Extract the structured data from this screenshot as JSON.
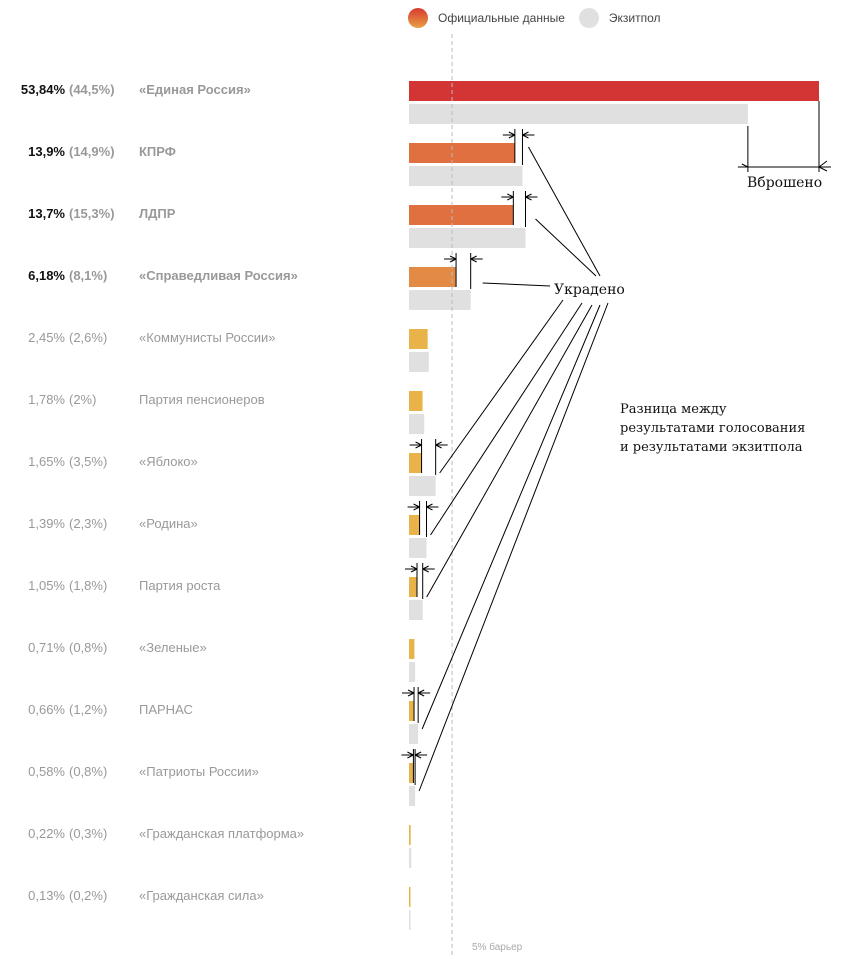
{
  "legend": {
    "official_label": "Официальные данные",
    "exitpoll_label": "Экзитпол"
  },
  "colors": {
    "official_major_top": "#d33434",
    "official_orange": "#e07040",
    "official_light_orange": "#e38a44",
    "official_minor": "#e8b44a",
    "exitpoll": "#e0e0e0",
    "barrier_line": "#bbbbbb",
    "annotation": "#000000"
  },
  "barrier_label": "5% барьер",
  "annotations": {
    "stuffed": "Вброшено",
    "stolen": "Украдено",
    "difference_line1": "Разница между",
    "difference_line2": "результатами голосования",
    "difference_line3": "и результатами экзитпола"
  },
  "rows": [
    {
      "official_text": "53,84%",
      "exitpoll_text": "(44,5%)",
      "name": "«Единая Россия»",
      "major": true
    },
    {
      "official_text": "13,9%",
      "exitpoll_text": "(14,9%)",
      "name": "КПРФ",
      "major": true
    },
    {
      "official_text": "13,7%",
      "exitpoll_text": "(15,3%)",
      "name": "ЛДПР",
      "major": true
    },
    {
      "official_text": "6,18%",
      "exitpoll_text": "(8,1%)",
      "name": "«Справедливая Россия»",
      "major": true
    },
    {
      "official_text": "2,45%",
      "exitpoll_text": "(2,6%)",
      "name": "«Коммунисты России»",
      "major": false
    },
    {
      "official_text": "1,78%",
      "exitpoll_text": "(2%)",
      "name": "Партия пенсионеров",
      "major": false
    },
    {
      "official_text": "1,65%",
      "exitpoll_text": "(3,5%)",
      "name": "«Яблоко»",
      "major": false
    },
    {
      "official_text": "1,39%",
      "exitpoll_text": "(2,3%)",
      "name": "«Родина»",
      "major": false
    },
    {
      "official_text": "1,05%",
      "exitpoll_text": "(1,8%)",
      "name": "Партия роста",
      "major": false
    },
    {
      "official_text": "0,71%",
      "exitpoll_text": "(0,8%)",
      "name": "«Зеленые»",
      "major": false
    },
    {
      "official_text": "0,66%",
      "exitpoll_text": "(1,2%)",
      "name": "ПАРНАС",
      "major": false
    },
    {
      "official_text": "0,58%",
      "exitpoll_text": "(0,8%)",
      "name": "«Патриоты России»",
      "major": false
    },
    {
      "official_text": "0,22%",
      "exitpoll_text": "(0,3%)",
      "name": "«Гражданская платформа»",
      "major": false
    },
    {
      "official_text": "0,13%",
      "exitpoll_text": "(0,2%)",
      "name": "«Гражданская сила»",
      "major": false
    }
  ],
  "chart_data": {
    "type": "bar",
    "orientation": "horizontal",
    "title": "",
    "xlabel": "",
    "ylabel": "",
    "categories": [
      "«Единая Россия»",
      "КПРФ",
      "ЛДПР",
      "«Справедливая Россия»",
      "«Коммунисты России»",
      "Партия пенсионеров",
      "«Яблоко»",
      "«Родина»",
      "Партия роста",
      "«Зеленые»",
      "ПАРНАС",
      "«Патриоты России»",
      "«Гражданская платформа»",
      "«Гражданская сила»"
    ],
    "series": [
      {
        "name": "Официальные данные",
        "values": [
          53.84,
          13.9,
          13.7,
          6.18,
          2.45,
          1.78,
          1.65,
          1.39,
          1.05,
          0.71,
          0.66,
          0.58,
          0.22,
          0.13
        ]
      },
      {
        "name": "Экзитпол",
        "values": [
          44.5,
          14.9,
          15.3,
          8.1,
          2.6,
          2.0,
          3.5,
          2.3,
          1.8,
          0.8,
          1.2,
          0.8,
          0.3,
          0.2
        ]
      }
    ],
    "reference_line": {
      "value": 5,
      "label": "5% барьер"
    },
    "xlim": [
      0,
      54
    ],
    "legend": "top",
    "grid": false,
    "annotations": [
      {
        "text": "Вброшено",
        "category": "«Единая Россия»"
      },
      {
        "text": "Украдено",
        "categories": [
          "КПРФ",
          "ЛДПР",
          "«Справедливая Россия»",
          "«Яблоко»",
          "«Родина»",
          "Партия роста",
          "ПАРНАС",
          "«Патриоты России»"
        ]
      },
      {
        "text": "Разница между результатами голосования и результатами экзитпола"
      }
    ]
  }
}
